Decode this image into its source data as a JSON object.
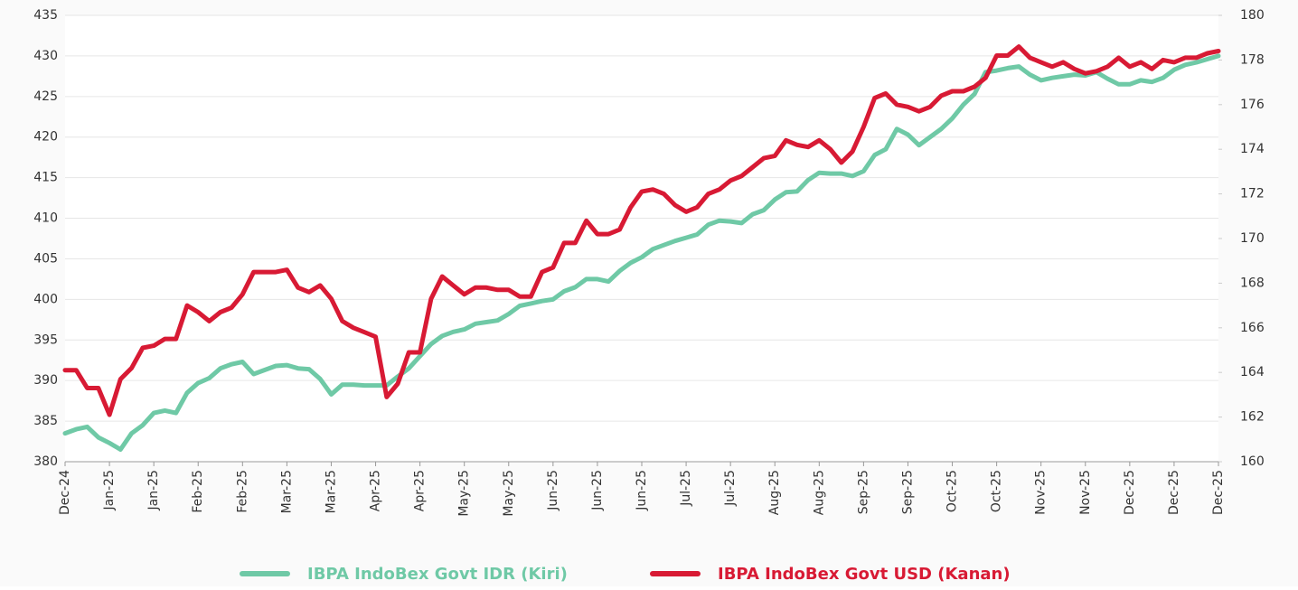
{
  "chart_data": {
    "type": "line",
    "categories": [
      "Dec-24",
      null,
      null,
      null,
      "Jan-25",
      null,
      null,
      null,
      "Jan-25",
      null,
      null,
      null,
      "Feb-25",
      null,
      null,
      null,
      "Feb-25",
      null,
      null,
      null,
      "Mar-25",
      null,
      null,
      null,
      "Mar-25",
      null,
      null,
      null,
      "Apr-25",
      null,
      null,
      null,
      "Apr-25",
      null,
      null,
      null,
      "May-25",
      null,
      null,
      null,
      "May-25",
      null,
      null,
      null,
      "Jun-25",
      null,
      null,
      null,
      "Jun-25",
      null,
      null,
      null,
      "Jun-25",
      null,
      null,
      null,
      "Jul-25",
      null,
      null,
      null,
      "Jul-25",
      null,
      null,
      null,
      "Aug-25",
      null,
      null,
      null,
      "Aug-25",
      null,
      null,
      null,
      "Sep-25",
      null,
      null,
      null,
      "Sep-25",
      null,
      null,
      null,
      "Oct-25",
      null,
      null,
      null,
      "Oct-25",
      null,
      null,
      null,
      "Nov-25",
      null,
      null,
      null,
      "Nov-25",
      null,
      null,
      null,
      "Dec-25",
      null,
      null,
      null,
      "Dec-25",
      null,
      null,
      null,
      "Dec-25"
    ],
    "series": [
      {
        "name": "IBPA IndoBex Govt IDR (Kiri)",
        "color": "#6fc9a6",
        "axis": "y",
        "values": [
          383.5,
          384.0,
          384.3,
          383.0,
          382.3,
          381.5,
          383.5,
          384.5,
          386.0,
          386.3,
          386.0,
          388.5,
          389.7,
          390.3,
          391.5,
          392.0,
          392.3,
          390.8,
          391.3,
          391.8,
          391.9,
          391.5,
          391.4,
          390.2,
          388.3,
          389.5,
          389.5,
          389.4,
          389.4,
          389.4,
          390.5,
          391.5,
          393.0,
          394.5,
          395.5,
          396.0,
          396.3,
          397.0,
          397.2,
          397.4,
          398.2,
          399.2,
          399.5,
          399.8,
          400.0,
          401.0,
          401.5,
          402.5,
          402.5,
          402.2,
          403.5,
          404.5,
          405.2,
          406.2,
          406.7,
          407.2,
          407.6,
          408.0,
          409.2,
          409.7,
          409.6,
          409.4,
          410.5,
          411.0,
          412.3,
          413.2,
          413.3,
          414.7,
          415.6,
          415.5,
          415.5,
          415.2,
          415.8,
          417.8,
          418.5,
          421.0,
          420.3,
          419.0,
          420.0,
          421.0,
          422.3,
          424.0,
          425.3,
          428.0,
          428.2,
          428.5,
          428.7,
          427.7,
          427.0,
          427.3,
          427.5,
          427.7,
          427.6,
          428.0,
          427.2,
          426.5,
          426.5,
          427.0,
          426.8,
          427.3,
          428.3,
          428.9,
          429.2,
          429.6,
          430.0
        ]
      },
      {
        "name": "IBPA IndoBex Govt USD (Kanan)",
        "color": "#d81a34",
        "axis": "y2",
        "values": [
          164.1,
          164.1,
          163.3,
          163.3,
          162.1,
          163.7,
          164.2,
          165.1,
          165.2,
          165.5,
          165.5,
          167.0,
          166.7,
          166.3,
          166.7,
          166.9,
          167.5,
          168.5,
          168.5,
          168.5,
          168.6,
          167.8,
          167.6,
          167.9,
          167.3,
          166.3,
          166.0,
          165.8,
          165.6,
          162.9,
          163.5,
          164.9,
          164.9,
          167.3,
          168.3,
          167.9,
          167.5,
          167.8,
          167.8,
          167.7,
          167.7,
          167.4,
          167.4,
          168.5,
          168.7,
          169.8,
          169.8,
          170.8,
          170.2,
          170.2,
          170.4,
          171.4,
          172.1,
          172.2,
          172.0,
          171.5,
          171.2,
          171.4,
          172.0,
          172.2,
          172.6,
          172.8,
          173.2,
          173.6,
          173.7,
          174.4,
          174.2,
          174.1,
          174.4,
          174.0,
          173.4,
          173.9,
          175.0,
          176.3,
          176.5,
          176.0,
          175.9,
          175.7,
          175.9,
          176.4,
          176.6,
          176.6,
          176.8,
          177.2,
          178.2,
          178.2,
          178.6,
          178.1,
          177.9,
          177.7,
          177.9,
          177.6,
          177.4,
          177.5,
          177.7,
          178.1,
          177.7,
          177.9,
          177.6,
          178.0,
          177.9,
          178.1,
          178.1,
          178.3,
          178.4
        ]
      }
    ],
    "ylim": [
      380,
      435
    ],
    "yticks": [
      380,
      385,
      390,
      395,
      400,
      405,
      410,
      415,
      420,
      425,
      430,
      435
    ],
    "y2lim": [
      160,
      180
    ],
    "y2ticks": [
      160,
      162,
      164,
      166,
      168,
      170,
      172,
      174,
      176,
      178,
      180
    ],
    "grid": true,
    "legend": "bottom"
  }
}
